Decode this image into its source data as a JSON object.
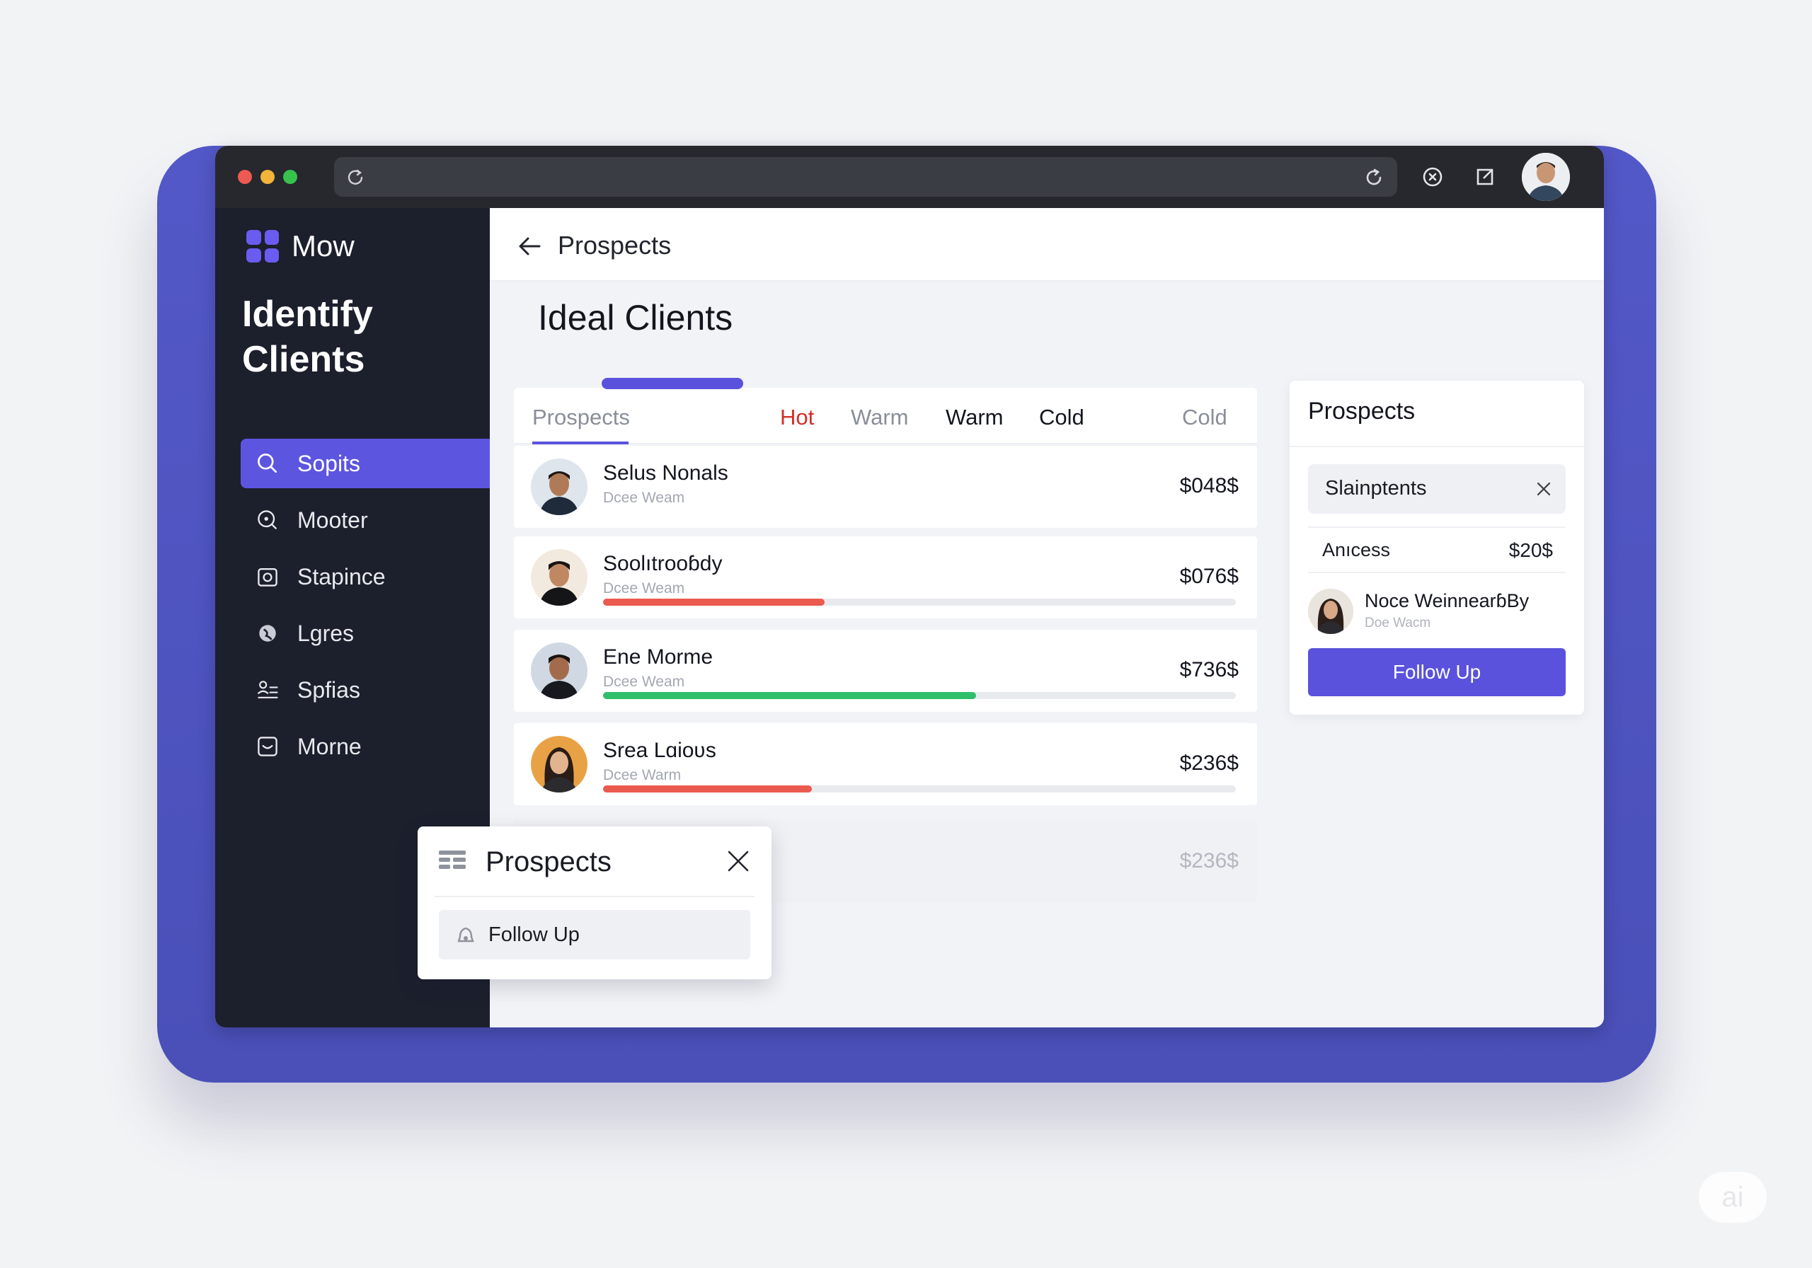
{
  "colors": {
    "accent": "#5a52dc",
    "sidebar_bg": "#1c1f2c",
    "chrome_bg": "#26282e",
    "backdrop": "#5057c4",
    "hot": "#d0302a",
    "bar_red": "#ea5a4e",
    "bar_green": "#2fbf6a"
  },
  "browser": {
    "icons": [
      "reload-icon",
      "refresh-icon",
      "cancel-icon",
      "share-icon"
    ]
  },
  "sidebar": {
    "brand": "Mow",
    "title": "Identify Clients",
    "items": [
      {
        "label": "Sopits",
        "icon": "search-icon",
        "active": true
      },
      {
        "label": "Mooter",
        "icon": "zoom-icon",
        "active": false
      },
      {
        "label": "Stapince",
        "icon": "camera-icon",
        "active": false
      },
      {
        "label": "Lgres",
        "icon": "globe-icon",
        "active": false
      },
      {
        "label": "Spfias",
        "icon": "person-list-icon",
        "active": false
      },
      {
        "label": "Morne",
        "icon": "message-icon",
        "active": false
      }
    ]
  },
  "topbar": {
    "title": "Prospects"
  },
  "main": {
    "page_title": "Ideal Clients",
    "tabs": {
      "prospects": "Prospects",
      "hot": "Hot",
      "warm1": "Warm",
      "warm2": "Warm",
      "cold1": "Cold",
      "cold2": "Cold"
    },
    "rows": [
      {
        "name": "Selus Nonals",
        "sub": "Dcee Weam",
        "amount": "$048$",
        "progress": null
      },
      {
        "name": "Soolıtrooɓdy",
        "sub": "Dcee Weam",
        "amount": "$076$",
        "progress": 0.35,
        "bar_color": "#ea5a4e"
      },
      {
        "name": "Ene Morme",
        "sub": "Dcee Weam",
        "amount": "$736$",
        "progress": 0.59,
        "bar_color": "#2fbf6a"
      },
      {
        "name": "Srea Lɑioʋs",
        "sub": "Dcee Warm",
        "amount": "$236$",
        "progress": 0.33,
        "bar_color": "#ea5a4e"
      }
    ],
    "ghost_row_amount": "$236$"
  },
  "side_panel": {
    "title": "Prospects",
    "search_value": "Slainptents",
    "summary_label": "Anıcess",
    "summary_value": "$20$",
    "person_name": "Noce WeinnearɓBy",
    "person_sub": "Doe Wacm",
    "button": "Follow Up"
  },
  "popup": {
    "title": "Prospects",
    "action": "Follow Up"
  },
  "watermark": "ai"
}
